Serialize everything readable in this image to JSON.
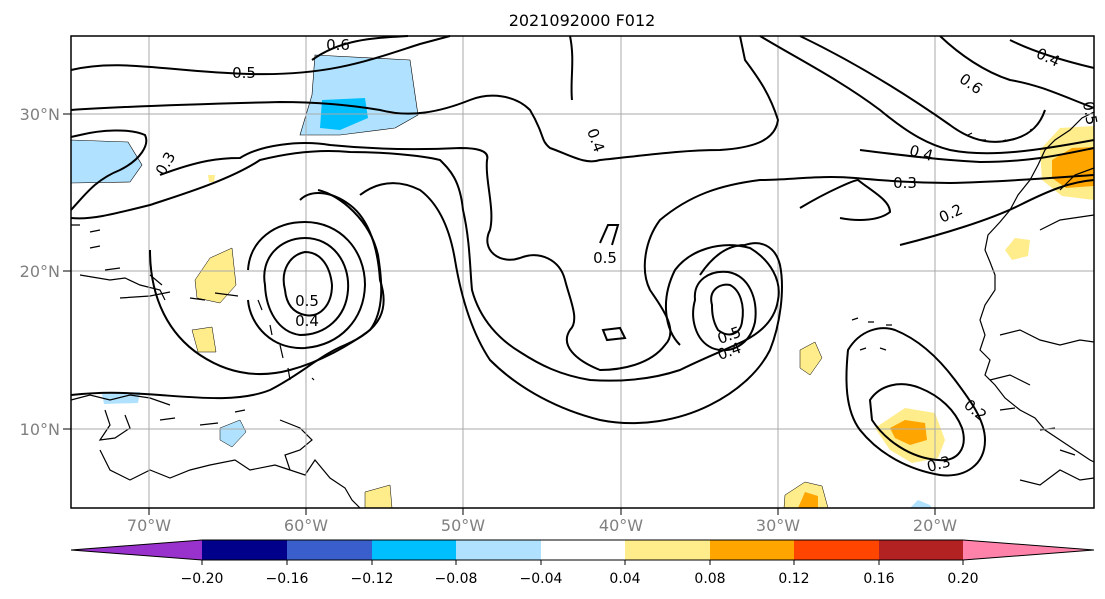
{
  "title": "2021092000 F012",
  "lat_labels": [
    "30°N",
    "20°N",
    "10°N"
  ],
  "lon_labels": [
    "70°W",
    "60°W",
    "50°W",
    "40°W",
    "30°W",
    "20°W"
  ],
  "contour_labels": [
    "0.6",
    "0.5",
    "0.4",
    "0.3",
    "0.4",
    "0.6",
    "0.5",
    "0.4",
    "0.3",
    "0.2",
    "0.5",
    "0.5",
    "0.4",
    "0.5",
    "0.4",
    "0.2",
    "0.3"
  ],
  "colorbar": {
    "tick_labels": [
      "−0.20",
      "−0.16",
      "−0.12",
      "−0.08",
      "−0.04",
      "0.04",
      "0.08",
      "0.12",
      "0.16",
      "0.20"
    ],
    "colors": [
      "#9932cc",
      "#00008b",
      "#3a5fcd",
      "#00bfff",
      "#b0e2ff",
      "#ffffff",
      "#ffec8b",
      "#ffa500",
      "#ff4500",
      "#b22222",
      "#ff82ab"
    ]
  }
}
